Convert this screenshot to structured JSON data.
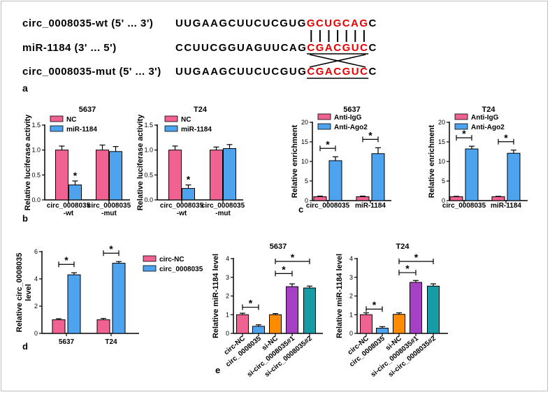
{
  "panel_a": {
    "label": "a",
    "rows": [
      {
        "name": "circ_0008035-wt  (5' ... 3')",
        "plain": "UUGAAGCUUCUCGUG",
        "red": "GCUGCAG",
        "tail": "C"
      },
      {
        "name": "miR-1184 (3' ... 5')",
        "plain": "CCUUCGGUAGUUCAG",
        "red": "CGACGUC",
        "tail": "C"
      },
      {
        "name": "circ_0008035-mut  (5' ... 3')",
        "plain": "UUGAAGCUUCUCGUG",
        "red": "CGACGUC",
        "tail": "C"
      }
    ]
  },
  "panel_labels": {
    "b": "b",
    "c": "c",
    "d": "d",
    "e": "e"
  },
  "colors": {
    "pink": "#f06292",
    "blue": "#4da3ee",
    "orange": "#ff8c00",
    "purple": "#a641c6",
    "teal": "#169ca6",
    "red": "#e60000"
  },
  "chart_data": [
    {
      "id": "b1",
      "type": "bar",
      "title": "5637",
      "ylabel": "Relative luciferase activity",
      "ylim": [
        0,
        1.5
      ],
      "yticks": [
        0.0,
        0.5,
        1.0,
        1.5
      ],
      "ytick_labels": [
        "0.0",
        "0.5",
        "1.0",
        "1.5"
      ],
      "categories": [
        [
          "circ_0008035",
          "-wt"
        ],
        [
          "circ_0008035",
          "-mut"
        ]
      ],
      "series": [
        {
          "name": "NC",
          "color": "#f06292",
          "values": [
            1.0,
            1.0
          ],
          "errors": [
            0.08,
            0.1
          ]
        },
        {
          "name": "miR-1184",
          "color": "#4da3ee",
          "values": [
            0.3,
            0.97
          ],
          "errors": [
            0.08,
            0.1
          ]
        }
      ],
      "stars": [
        {
          "category": 0,
          "series": 1,
          "text": "*"
        }
      ]
    },
    {
      "id": "b2",
      "type": "bar",
      "title": "T24",
      "ylabel": "Relative luciferase activity",
      "ylim": [
        0,
        1.5
      ],
      "yticks": [
        0.0,
        0.5,
        1.0,
        1.5
      ],
      "ytick_labels": [
        "0.0",
        "0.5",
        "1.0",
        "1.5"
      ],
      "categories": [
        [
          "circ_0008035",
          "-wt"
        ],
        [
          "circ_0008035",
          "-mut"
        ]
      ],
      "series": [
        {
          "name": "NC",
          "color": "#f06292",
          "values": [
            1.0,
            1.0
          ],
          "errors": [
            0.08,
            0.06
          ]
        },
        {
          "name": "miR-1184",
          "color": "#4da3ee",
          "values": [
            0.23,
            1.03
          ],
          "errors": [
            0.07,
            0.08
          ]
        }
      ],
      "stars": [
        {
          "category": 0,
          "series": 1,
          "text": "*"
        }
      ]
    },
    {
      "id": "c1",
      "type": "bar",
      "title": "5637",
      "ylabel": "Relative enrichment",
      "ylim": [
        0,
        20
      ],
      "yticks": [
        0,
        5,
        10,
        15,
        20
      ],
      "ytick_labels": [
        "0",
        "5",
        "10",
        "15",
        "20"
      ],
      "categories": [
        [
          "circ_0008035"
        ],
        [
          "miR-1184"
        ]
      ],
      "series": [
        {
          "name": "Anti-IgG",
          "color": "#f06292",
          "values": [
            1.0,
            1.0
          ],
          "errors": [
            0.15,
            0.15
          ]
        },
        {
          "name": "Anti-Ago2",
          "color": "#4da3ee",
          "values": [
            10.2,
            12.0
          ],
          "errors": [
            1.0,
            1.5
          ]
        }
      ],
      "brackets": [
        {
          "category": 0,
          "text": "*"
        },
        {
          "category": 1,
          "text": "*"
        }
      ]
    },
    {
      "id": "c2",
      "type": "bar",
      "title": "T24",
      "ylabel": "Relative enrichment",
      "ylim": [
        0,
        20
      ],
      "yticks": [
        0,
        5,
        10,
        15,
        20
      ],
      "ytick_labels": [
        "0",
        "5",
        "10",
        "15",
        "20"
      ],
      "categories": [
        [
          "circ_0008035"
        ],
        [
          "miR-1184"
        ]
      ],
      "series": [
        {
          "name": "Anti-IgG",
          "color": "#f06292",
          "values": [
            1.0,
            1.0
          ],
          "errors": [
            0.1,
            0.1
          ]
        },
        {
          "name": "Anti-Ago2",
          "color": "#4da3ee",
          "values": [
            13.2,
            12.1
          ],
          "errors": [
            0.7,
            0.8
          ]
        }
      ],
      "brackets": [
        {
          "category": 0,
          "text": "*"
        },
        {
          "category": 1,
          "text": "*"
        }
      ]
    },
    {
      "id": "d",
      "type": "bar",
      "title": "",
      "ylabel": "Relative circ_0008035 level",
      "ylim": [
        0,
        6
      ],
      "yticks": [
        0,
        2,
        4,
        6
      ],
      "ytick_labels": [
        "0",
        "2",
        "4",
        "6"
      ],
      "categories": [
        [
          "5637"
        ],
        [
          "T24"
        ]
      ],
      "series": [
        {
          "name": "circ-NC",
          "color": "#f06292",
          "values": [
            1.0,
            1.0
          ],
          "errors": [
            0.08,
            0.1
          ]
        },
        {
          "name": "circ_0008035",
          "color": "#4da3ee",
          "values": [
            4.3,
            5.15
          ],
          "errors": [
            0.15,
            0.12
          ]
        }
      ],
      "brackets": [
        {
          "category": 0,
          "text": "*"
        },
        {
          "category": 1,
          "text": "*"
        }
      ]
    },
    {
      "id": "e1",
      "type": "bar",
      "title": "5637",
      "ylabel": "Relative miR-1184 level",
      "ylim": [
        0,
        4
      ],
      "yticks": [
        0,
        1,
        2,
        3,
        4
      ],
      "ytick_labels": [
        "0",
        "1",
        "2",
        "3",
        "4"
      ],
      "categories": [
        "circ-NC",
        "circ_0008035",
        "si-NC",
        "si-circ_0008035#1",
        "si-circ_0008035#2"
      ],
      "bars": [
        {
          "value": 1.0,
          "error": 0.08,
          "color": "#f06292"
        },
        {
          "value": 0.38,
          "error": 0.08,
          "color": "#4da3ee"
        },
        {
          "value": 1.0,
          "error": 0.06,
          "color": "#ff8c00"
        },
        {
          "value": 2.5,
          "error": 0.15,
          "color": "#a641c6"
        },
        {
          "value": 2.43,
          "error": 0.1,
          "color": "#169ca6"
        }
      ],
      "brackets": [
        {
          "from": 0,
          "to": 1,
          "y": 1.4,
          "text": "*"
        },
        {
          "from": 2,
          "to": 3,
          "y": 3.2,
          "text": "*"
        },
        {
          "from": 2,
          "to": 4,
          "y": 3.85,
          "text": "*"
        }
      ]
    },
    {
      "id": "e2",
      "type": "bar",
      "title": "T24",
      "ylabel": "Relative miR-1184 level",
      "ylim": [
        0,
        4
      ],
      "yticks": [
        0,
        1,
        2,
        3,
        4
      ],
      "ytick_labels": [
        "0",
        "1",
        "2",
        "3",
        "4"
      ],
      "categories": [
        "circ-NC",
        "circ_0008035",
        "si-NC",
        "si-circ_0008035#1",
        "si-circ_0008035#2"
      ],
      "bars": [
        {
          "value": 1.0,
          "error": 0.1,
          "color": "#f06292"
        },
        {
          "value": 0.28,
          "error": 0.08,
          "color": "#4da3ee"
        },
        {
          "value": 1.02,
          "error": 0.08,
          "color": "#ff8c00"
        },
        {
          "value": 2.73,
          "error": 0.1,
          "color": "#a641c6"
        },
        {
          "value": 2.53,
          "error": 0.12,
          "color": "#169ca6"
        }
      ],
      "brackets": [
        {
          "from": 0,
          "to": 1,
          "y": 1.3,
          "text": "*"
        },
        {
          "from": 2,
          "to": 3,
          "y": 3.25,
          "text": "*"
        },
        {
          "from": 2,
          "to": 4,
          "y": 3.85,
          "text": "*"
        }
      ]
    }
  ]
}
